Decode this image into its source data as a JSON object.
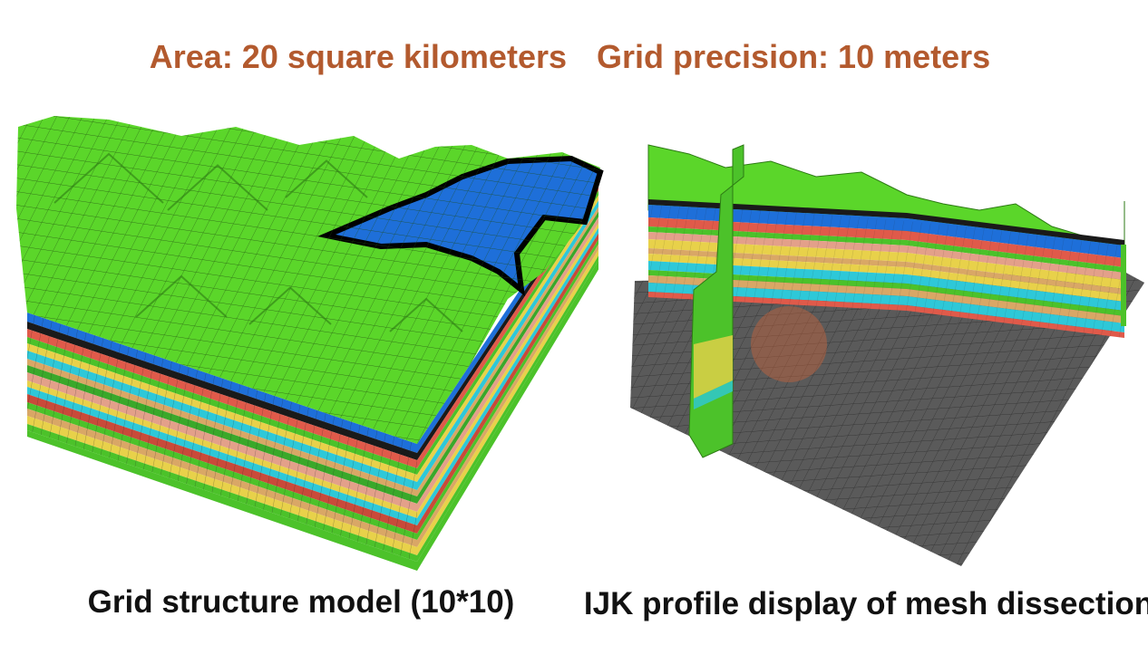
{
  "header": {
    "area": "Area: 20 square kilometers",
    "precision": "Grid precision: 10 meters"
  },
  "figures": [
    {
      "caption": "Grid structure model (10*10)"
    },
    {
      "caption": "IJK profile display of mesh dissection"
    }
  ]
}
